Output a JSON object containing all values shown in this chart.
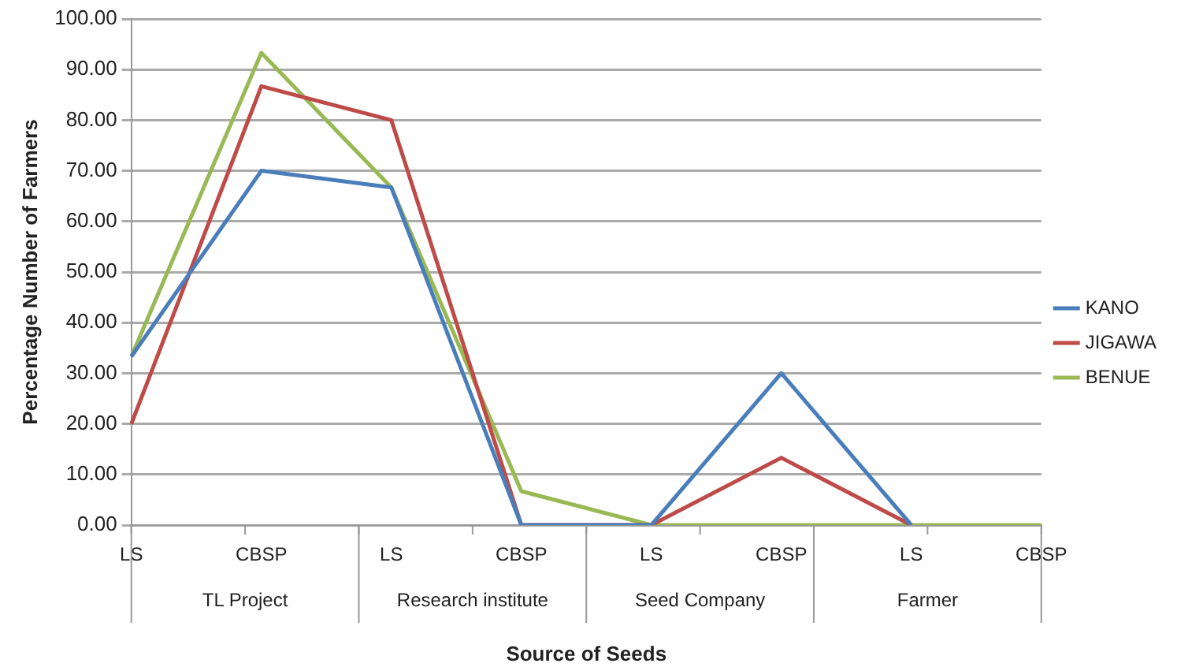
{
  "chart_data": {
    "type": "line",
    "xlabel": "Source of Seeds",
    "ylabel": "Percentage Number of Farmers",
    "categories": [
      "LS",
      "CBSP",
      "LS",
      "CBSP",
      "LS",
      "CBSP",
      "LS",
      "CBSP"
    ],
    "annotations": [
      "TL Project",
      "Research institute",
      "Seed Company",
      "Farmer"
    ],
    "series": [
      {
        "name": "KANO",
        "color": "#4a7ebb",
        "values": [
          33.3,
          70,
          66.7,
          0,
          0,
          30,
          0,
          null
        ]
      },
      {
        "name": "JIGAWA",
        "color": "#be4b48",
        "values": [
          20,
          86.7,
          80,
          0,
          0,
          13.3,
          0,
          null
        ]
      },
      {
        "name": "BENUE",
        "color": "#98b954",
        "values": [
          33.3,
          93.3,
          66.7,
          6.7,
          0,
          0,
          0,
          0
        ]
      }
    ],
    "ylim": [
      0,
      100
    ],
    "yticks": [
      {
        "value": 0,
        "label": "0.00"
      },
      {
        "value": 10,
        "label": "10.00"
      },
      {
        "value": 20,
        "label": "20.00"
      },
      {
        "value": 30,
        "label": "30.00"
      },
      {
        "value": 40,
        "label": "40.00"
      },
      {
        "value": 50,
        "label": "50.00"
      },
      {
        "value": 60,
        "label": "60.00"
      },
      {
        "value": 70,
        "label": "70.00"
      },
      {
        "value": 80,
        "label": "80.00"
      },
      {
        "value": 90,
        "label": "90.00"
      },
      {
        "value": 100,
        "label": "100.00"
      }
    ],
    "grid": "y",
    "legend": "right",
    "marker": "none",
    "line_style": "solid"
  }
}
